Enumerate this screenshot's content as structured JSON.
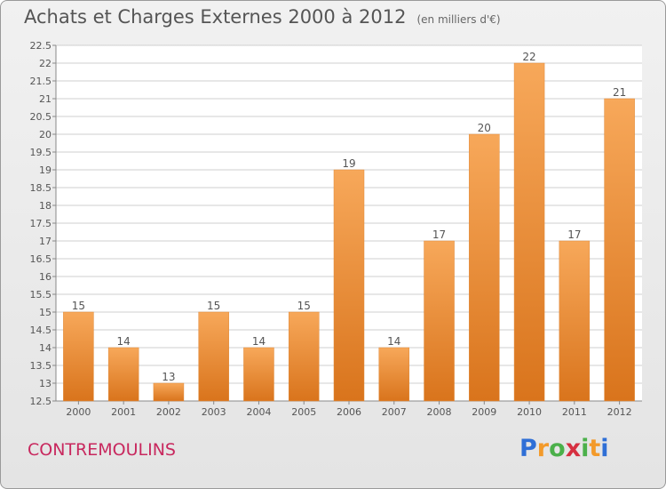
{
  "header": {
    "title": "Achats et Charges Externes 2000 à 2012",
    "unit": "(en milliers d'€)"
  },
  "footer": {
    "commune": "CONTREMOULINS",
    "logo_text": "Proxiti"
  },
  "colors": {
    "bar_light": "#f7a85a",
    "bar_dark": "#d9741c",
    "title": "#555555",
    "commune": "#c8285e",
    "grid": "#cfcfcf"
  },
  "chart_data": {
    "type": "bar",
    "categories": [
      "2000",
      "2001",
      "2002",
      "2003",
      "2004",
      "2005",
      "2006",
      "2007",
      "2008",
      "2009",
      "2010",
      "2011",
      "2012"
    ],
    "values": [
      15,
      14,
      13,
      15,
      14,
      15,
      19,
      14,
      17,
      20,
      22,
      17,
      21
    ],
    "title": "Achats et Charges Externes 2000 à 2012",
    "xlabel": "",
    "ylabel": "",
    "ylim": [
      12.5,
      22.5
    ],
    "yticks": [
      "12.5",
      "13",
      "13.5",
      "14",
      "14.5",
      "15",
      "15.5",
      "16",
      "16.5",
      "17",
      "17.5",
      "18",
      "18.5",
      "19",
      "19.5",
      "20",
      "20.5",
      "21",
      "21.5",
      "22",
      "22.5"
    ],
    "grid": true,
    "legend": "none"
  }
}
